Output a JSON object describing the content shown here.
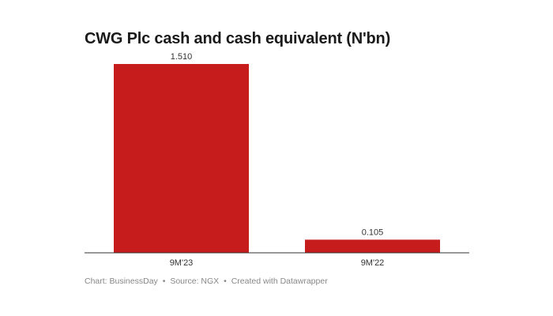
{
  "chart_data": {
    "type": "bar",
    "title": "CWG Plc cash and cash equivalent (N'bn)",
    "categories": [
      "9M'23",
      "9M'22"
    ],
    "values": [
      1.51,
      0.105
    ],
    "value_labels": [
      "1.510",
      "0.105"
    ],
    "xlabel": "",
    "ylabel": "",
    "ylim": [
      0,
      1.51
    ],
    "grid": false,
    "bar_color": "#c61c1c",
    "axis_color": "#333333"
  },
  "footer": {
    "chart_credit": "Chart: BusinessDay",
    "source": "Source: NGX",
    "created_with": "Created with Datawrapper",
    "separator": "•"
  }
}
